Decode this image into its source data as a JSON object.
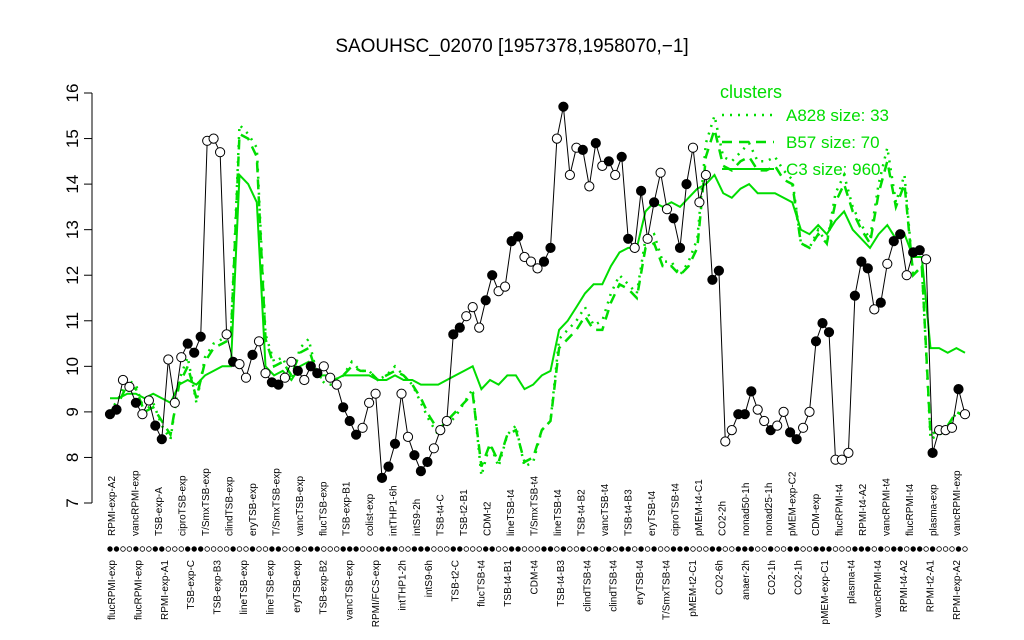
{
  "chart_data": {
    "type": "line",
    "title": "SAOUHSC_02070 [1957378,1958070,−1]",
    "xlabel": "",
    "ylabel": "",
    "ylim": [
      7,
      16
    ],
    "yticks": [
      7,
      8,
      9,
      10,
      11,
      12,
      13,
      14,
      15,
      16
    ],
    "grid": false,
    "legend_position": "top-right",
    "legend_title": "clusters",
    "legend_color": "#00dd00",
    "top_labels": [
      "RPMI-exp-A2",
      "vancRPMI-exp",
      "TSB-exp-A",
      "ciproTSB-exp",
      "T/SmxTSB-exp",
      "clindTSB-exp",
      "eryTSB-exp",
      "T/SmxTSB-exp",
      "vancTSB-exp",
      "flucTSB-exp",
      "TSB-exp-B1",
      "colist-exp",
      "intTHP1-6h",
      "intS9-2h",
      "TSB-t4-C",
      "TSB-t2-B1",
      "CDM-t2",
      "lineTSB-t4",
      "T/SmxTSB-t4",
      "lineTSB-t4",
      "TSB-t4-B2",
      "vancTSB-t4",
      "TSB-t4-B3",
      "eryTSB-t4",
      "ciproTSB-t4",
      "pMEM-t4-C1",
      "CO2-2h",
      "nonad50-1h",
      "nonad25-1h",
      "pMEM-exp-C2",
      "CDM-exp",
      "flucRPMI-t4",
      "RPMI-t4-A2",
      "vancRPMI-t4",
      "flucRPMI-t4",
      "plasma-exp",
      "vancRPMI-exp"
    ],
    "bottom_labels": [
      "flucRPMI-exp",
      "flucRPMI-exp",
      "RPMI-exp-A1",
      "TSB-exp-C",
      "TSB-exp-B3",
      "lineTSB-exp",
      "lineTSB-exp",
      "eryTSB-exp",
      "TSB-exp-B2",
      "vancTSB-exp",
      "RPMI/FCS-exp",
      "intTHP1-2h",
      "intS9-6h",
      "TSB-t2-C",
      "flucTSB-t4",
      "TSB-t4-B1",
      "CDM-t4",
      "TSB-t4-B3",
      "clindTSB-t4",
      "clindTSB-t4",
      "eryTSB-t4",
      "T/SmxTSB-t4",
      "pMEM-t2-C1",
      "CO2-6h",
      "anaer-2h",
      "CO2-1h",
      "CO2-1h",
      "pMEM-exp-C1",
      "plasma-t4",
      "vancRPMI-t4",
      "RPMI-t4-A2",
      "RPMI-t2-A1",
      "RPMI-exp-A2"
    ],
    "n_samples": 100,
    "series": [
      {
        "name": "A828 size: 33",
        "style": "dotted",
        "color": "#00dd00",
        "values": [
          9.0,
          9.3,
          9.7,
          9.6,
          9.0,
          9.2,
          8.7,
          8.4,
          9.7,
          10.2,
          9.2,
          10.2,
          10.5,
          10.6,
          10.7,
          15.3,
          15.1,
          14.8,
          10.7,
          10.1,
          10.2,
          9.7,
          10.4,
          10.6,
          9.8,
          9.6,
          9.6,
          9.8,
          10.1,
          9.9,
          9.9,
          9.7,
          9.8,
          10.0,
          9.8,
          9.6,
          9.2,
          8.8,
          8.5,
          8.7,
          8.9,
          9.2,
          9.5,
          7.6,
          8.3,
          7.8,
          8.5,
          8.7,
          7.8,
          7.9,
          8.6,
          8.8,
          10.6,
          10.8,
          11.0,
          11.3,
          10.9,
          11.0,
          11.6,
          12.0,
          11.8,
          11.6,
          12.8,
          12.9,
          12.3,
          12.3,
          12.0,
          12.3,
          12.8,
          14.9,
          15.5,
          14.6,
          14.5,
          14.7,
          14.9,
          14.5,
          14.5,
          14.6,
          14.3,
          14.1,
          12.7,
          12.6,
          13.0,
          12.7,
          13.8,
          14.2,
          13.5,
          13.1,
          12.8,
          14.0,
          14.8,
          13.6,
          14.2,
          12.0,
          12.2,
          8.4,
          8.5,
          8.6,
          9.0,
          8.9
        ]
      },
      {
        "name": "B57 size: 70",
        "style": "dashed",
        "color": "#00dd00",
        "values": [
          9.0,
          9.2,
          9.6,
          9.5,
          9.0,
          9.1,
          8.8,
          8.5,
          9.6,
          10.0,
          9.3,
          10.1,
          10.4,
          10.5,
          10.6,
          15.1,
          15.0,
          14.6,
          10.6,
          10.0,
          10.1,
          9.8,
          10.3,
          10.4,
          9.8,
          9.7,
          9.7,
          9.8,
          10.0,
          9.9,
          9.9,
          9.7,
          9.8,
          9.9,
          9.8,
          9.6,
          9.3,
          8.9,
          8.6,
          8.8,
          9.0,
          9.2,
          9.4,
          7.8,
          8.3,
          7.9,
          8.5,
          8.6,
          7.9,
          8.0,
          8.6,
          8.8,
          10.4,
          10.6,
          10.8,
          11.1,
          10.8,
          10.8,
          11.4,
          11.8,
          11.7,
          11.5,
          12.6,
          12.7,
          12.2,
          12.2,
          12.0,
          12.2,
          12.6,
          14.6,
          15.2,
          14.4,
          14.3,
          14.5,
          14.6,
          14.3,
          14.3,
          14.4,
          14.1,
          14.0,
          12.7,
          12.6,
          12.9,
          12.7,
          13.6,
          14.0,
          13.4,
          13.0,
          12.7,
          13.8,
          14.5,
          13.5,
          14.0,
          12.0,
          12.2,
          8.5,
          8.6,
          8.7,
          9.0,
          8.9
        ]
      },
      {
        "name": "C3 size: 960",
        "style": "solid",
        "color": "#00dd00",
        "values": [
          9.3,
          9.3,
          9.4,
          9.4,
          9.3,
          9.4,
          9.3,
          9.2,
          9.6,
          9.7,
          9.6,
          9.8,
          9.9,
          10.0,
          10.0,
          14.2,
          14.0,
          13.6,
          10.0,
          9.8,
          9.9,
          9.7,
          10.0,
          10.1,
          9.8,
          9.8,
          9.7,
          9.8,
          9.8,
          9.8,
          9.8,
          9.7,
          9.7,
          9.8,
          9.7,
          9.7,
          9.6,
          9.6,
          9.6,
          9.7,
          9.8,
          9.9,
          10.0,
          9.5,
          9.7,
          9.6,
          9.8,
          9.8,
          9.5,
          9.6,
          9.8,
          9.9,
          10.8,
          11.0,
          11.3,
          11.6,
          11.8,
          11.8,
          12.2,
          12.5,
          12.6,
          12.6,
          13.4,
          13.6,
          13.5,
          13.6,
          13.5,
          13.7,
          13.9,
          14.0,
          14.2,
          13.8,
          13.7,
          13.9,
          14.0,
          13.8,
          13.8,
          13.8,
          13.7,
          13.6,
          13.0,
          12.9,
          13.1,
          12.9,
          13.2,
          13.4,
          13.0,
          12.8,
          12.6,
          12.9,
          13.1,
          12.8,
          12.9,
          12.4,
          12.4,
          10.4,
          10.4,
          10.3,
          10.4,
          10.3
        ]
      }
    ],
    "points": [
      {
        "v": 8.95,
        "f": 1
      },
      {
        "v": 9.05,
        "f": 1
      },
      {
        "v": 9.7,
        "f": 0
      },
      {
        "v": 9.55,
        "f": 0
      },
      {
        "v": 9.2,
        "f": 1
      },
      {
        "v": 8.95,
        "f": 0
      },
      {
        "v": 9.25,
        "f": 0
      },
      {
        "v": 8.7,
        "f": 1
      },
      {
        "v": 8.4,
        "f": 1
      },
      {
        "v": 10.15,
        "f": 0
      },
      {
        "v": 9.2,
        "f": 0
      },
      {
        "v": 10.2,
        "f": 0
      },
      {
        "v": 10.5,
        "f": 1
      },
      {
        "v": 10.3,
        "f": 1
      },
      {
        "v": 10.65,
        "f": 1
      },
      {
        "v": 14.95,
        "f": 0
      },
      {
        "v": 15.0,
        "f": 0
      },
      {
        "v": 14.7,
        "f": 0
      },
      {
        "v": 10.7,
        "f": 0
      },
      {
        "v": 10.1,
        "f": 1
      },
      {
        "v": 10.05,
        "f": 0
      },
      {
        "v": 9.75,
        "f": 0
      },
      {
        "v": 10.25,
        "f": 1
      },
      {
        "v": 10.55,
        "f": 0
      },
      {
        "v": 9.85,
        "f": 0
      },
      {
        "v": 9.65,
        "f": 1
      },
      {
        "v": 9.6,
        "f": 1
      },
      {
        "v": 9.75,
        "f": 0
      },
      {
        "v": 10.1,
        "f": 0
      },
      {
        "v": 9.9,
        "f": 1
      },
      {
        "v": 9.7,
        "f": 0
      },
      {
        "v": 10.0,
        "f": 1
      },
      {
        "v": 9.85,
        "f": 1
      },
      {
        "v": 10.0,
        "f": 0
      },
      {
        "v": 9.75,
        "f": 0
      },
      {
        "v": 9.6,
        "f": 0
      },
      {
        "v": 9.1,
        "f": 1
      },
      {
        "v": 8.8,
        "f": 1
      },
      {
        "v": 8.5,
        "f": 1
      },
      {
        "v": 8.65,
        "f": 0
      },
      {
        "v": 9.2,
        "f": 0
      },
      {
        "v": 9.4,
        "f": 0
      },
      {
        "v": 7.55,
        "f": 1
      },
      {
        "v": 7.8,
        "f": 1
      },
      {
        "v": 8.3,
        "f": 1
      },
      {
        "v": 9.4,
        "f": 0
      },
      {
        "v": 8.45,
        "f": 0
      },
      {
        "v": 8.05,
        "f": 1
      },
      {
        "v": 7.7,
        "f": 1
      },
      {
        "v": 7.9,
        "f": 1
      },
      {
        "v": 8.2,
        "f": 0
      },
      {
        "v": 8.6,
        "f": 0
      },
      {
        "v": 8.8,
        "f": 0
      },
      {
        "v": 10.7,
        "f": 1
      },
      {
        "v": 10.85,
        "f": 1
      },
      {
        "v": 11.1,
        "f": 0
      },
      {
        "v": 11.3,
        "f": 0
      },
      {
        "v": 10.85,
        "f": 0
      },
      {
        "v": 11.45,
        "f": 1
      },
      {
        "v": 12.0,
        "f": 1
      },
      {
        "v": 11.65,
        "f": 0
      },
      {
        "v": 11.75,
        "f": 0
      },
      {
        "v": 12.75,
        "f": 1
      },
      {
        "v": 12.85,
        "f": 1
      },
      {
        "v": 12.4,
        "f": 0
      },
      {
        "v": 12.3,
        "f": 0
      },
      {
        "v": 12.15,
        "f": 0
      },
      {
        "v": 12.3,
        "f": 1
      },
      {
        "v": 12.6,
        "f": 1
      },
      {
        "v": 15.0,
        "f": 0
      },
      {
        "v": 15.7,
        "f": 1
      },
      {
        "v": 14.2,
        "f": 0
      },
      {
        "v": 14.8,
        "f": 0
      },
      {
        "v": 14.75,
        "f": 1
      },
      {
        "v": 13.95,
        "f": 0
      },
      {
        "v": 14.9,
        "f": 1
      },
      {
        "v": 14.4,
        "f": 0
      },
      {
        "v": 14.5,
        "f": 1
      },
      {
        "v": 14.2,
        "f": 0
      },
      {
        "v": 14.6,
        "f": 1
      },
      {
        "v": 12.8,
        "f": 1
      },
      {
        "v": 12.6,
        "f": 0
      },
      {
        "v": 13.85,
        "f": 1
      },
      {
        "v": 12.8,
        "f": 0
      },
      {
        "v": 13.6,
        "f": 1
      },
      {
        "v": 14.25,
        "f": 0
      },
      {
        "v": 13.45,
        "f": 0
      },
      {
        "v": 13.25,
        "f": 1
      },
      {
        "v": 12.6,
        "f": 1
      },
      {
        "v": 14.0,
        "f": 1
      },
      {
        "v": 14.8,
        "f": 0
      },
      {
        "v": 13.6,
        "f": 0
      },
      {
        "v": 14.2,
        "f": 0
      },
      {
        "v": 11.9,
        "f": 1
      },
      {
        "v": 12.1,
        "f": 1
      },
      {
        "v": 8.35,
        "f": 0
      },
      {
        "v": 8.6,
        "f": 0
      },
      {
        "v": 8.95,
        "f": 1
      },
      {
        "v": 8.95,
        "f": 1
      },
      {
        "v": 9.45,
        "f": 1
      }
    ],
    "points_tail": [
      {
        "v": 9.05,
        "f": 0
      },
      {
        "v": 8.8,
        "f": 0
      },
      {
        "v": 8.6,
        "f": 1
      },
      {
        "v": 8.7,
        "f": 0
      },
      {
        "v": 9.0,
        "f": 0
      },
      {
        "v": 8.55,
        "f": 1
      },
      {
        "v": 8.4,
        "f": 1
      },
      {
        "v": 8.65,
        "f": 0
      },
      {
        "v": 9.0,
        "f": 0
      },
      {
        "v": 10.55,
        "f": 1
      },
      {
        "v": 10.95,
        "f": 1
      },
      {
        "v": 10.75,
        "f": 1
      },
      {
        "v": 7.95,
        "f": 0
      },
      {
        "v": 7.95,
        "f": 0
      },
      {
        "v": 8.1,
        "f": 0
      },
      {
        "v": 11.55,
        "f": 1
      },
      {
        "v": 12.3,
        "f": 1
      },
      {
        "v": 12.15,
        "f": 1
      },
      {
        "v": 11.25,
        "f": 0
      },
      {
        "v": 11.4,
        "f": 1
      },
      {
        "v": 12.25,
        "f": 0
      },
      {
        "v": 12.75,
        "f": 1
      },
      {
        "v": 12.9,
        "f": 1
      },
      {
        "v": 12.0,
        "f": 0
      },
      {
        "v": 12.5,
        "f": 1
      },
      {
        "v": 12.55,
        "f": 1
      },
      {
        "v": 12.35,
        "f": 0
      },
      {
        "v": 8.1,
        "f": 1
      },
      {
        "v": 8.6,
        "f": 0
      },
      {
        "v": 8.6,
        "f": 0
      },
      {
        "v": 8.65,
        "f": 0
      },
      {
        "v": 9.5,
        "f": 1
      },
      {
        "v": 8.95,
        "f": 0
      }
    ]
  }
}
